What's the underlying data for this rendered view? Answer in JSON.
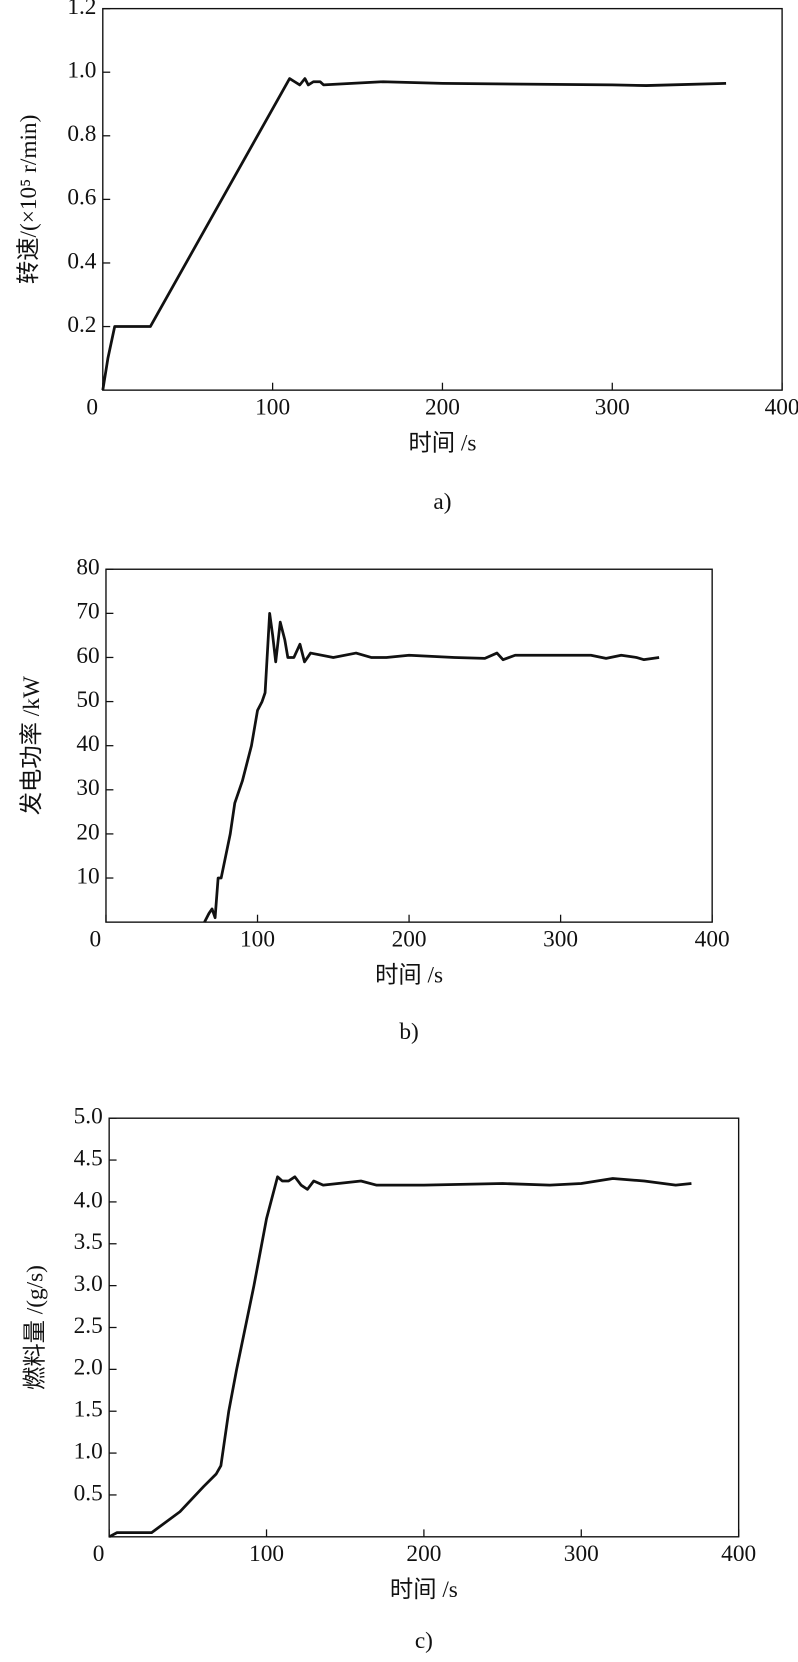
{
  "chart_data": [
    {
      "type": "line",
      "ylabel": "转速/(×10⁵ r/min)",
      "xlabel": "时间 /s",
      "caption": "a)",
      "xlim": [
        0,
        400
      ],
      "xticks": [
        0,
        100,
        200,
        300,
        400
      ],
      "ylim": [
        0,
        1.2
      ],
      "yticks": [
        0.2,
        0.4,
        0.6,
        0.8,
        {
          "value": 1,
          "label": "1.0"
        },
        1.2
      ],
      "x": [
        0,
        3,
        7,
        28,
        110,
        113,
        116,
        119,
        121,
        124,
        128,
        130,
        165,
        200,
        300,
        320,
        367
      ],
      "values": [
        0,
        0.1,
        0.2,
        0.2,
        0.98,
        0.97,
        0.96,
        0.98,
        0.96,
        0.97,
        0.97,
        0.96,
        0.97,
        0.965,
        0.96,
        0.958,
        0.965
      ],
      "color": "#111111"
    },
    {
      "type": "line",
      "ylabel": "发电功率 /kW",
      "xlabel": "时间 /s",
      "caption": "b)",
      "xlim": [
        0,
        400
      ],
      "xticks": [
        0,
        100,
        200,
        300,
        400
      ],
      "ylim": [
        0,
        80
      ],
      "yticks": [
        10,
        20,
        30,
        40,
        50,
        60,
        70,
        80
      ],
      "x": [
        65,
        68,
        70,
        72,
        74,
        76,
        79,
        82,
        85,
        90,
        96,
        100,
        103,
        105,
        108,
        110,
        112,
        115,
        118,
        120,
        124,
        128,
        131,
        135,
        150,
        165,
        175,
        185,
        200,
        230,
        250,
        258,
        262,
        270,
        300,
        320,
        330,
        340,
        350,
        355,
        365
      ],
      "values": [
        0,
        2,
        3,
        1,
        10,
        10,
        15,
        20,
        27,
        32,
        40,
        48,
        50,
        52,
        70,
        65,
        59,
        68,
        64,
        60,
        60,
        63,
        59,
        61,
        60,
        61,
        60,
        60,
        60.5,
        60,
        59.8,
        61,
        59.5,
        60.5,
        60.5,
        60.5,
        59.8,
        60.5,
        60,
        59.5,
        60
      ],
      "color": "#111111"
    },
    {
      "type": "line",
      "ylabel": "燃料量 /(g/s)",
      "xlabel": "时间 /s",
      "caption": "c)",
      "xlim": [
        0,
        400
      ],
      "xticks": [
        0,
        100,
        200,
        300,
        400
      ],
      "ylim": [
        0,
        5
      ],
      "yticks": [
        0.5,
        {
          "value": 1,
          "label": "1.0"
        },
        1.5,
        {
          "value": 2,
          "label": "2.0"
        },
        2.5,
        {
          "value": 3,
          "label": "3.0"
        },
        3.5,
        {
          "value": 4,
          "label": "4.0"
        },
        4.5,
        {
          "value": 5,
          "label": "5.0"
        }
      ],
      "x": [
        0,
        5,
        27,
        45,
        60,
        68,
        71,
        76,
        81,
        92,
        100,
        107,
        110,
        114,
        118,
        122,
        126,
        130,
        136,
        160,
        170,
        200,
        250,
        280,
        300,
        320,
        340,
        360,
        370
      ],
      "values": [
        0,
        0.05,
        0.05,
        0.3,
        0.6,
        0.75,
        0.85,
        1.5,
        2,
        3,
        3.8,
        4.3,
        4.25,
        4.25,
        4.3,
        4.2,
        4.15,
        4.25,
        4.2,
        4.25,
        4.2,
        4.2,
        4.22,
        4.2,
        4.22,
        4.28,
        4.25,
        4.2,
        4.22
      ],
      "color": "#111111"
    }
  ]
}
